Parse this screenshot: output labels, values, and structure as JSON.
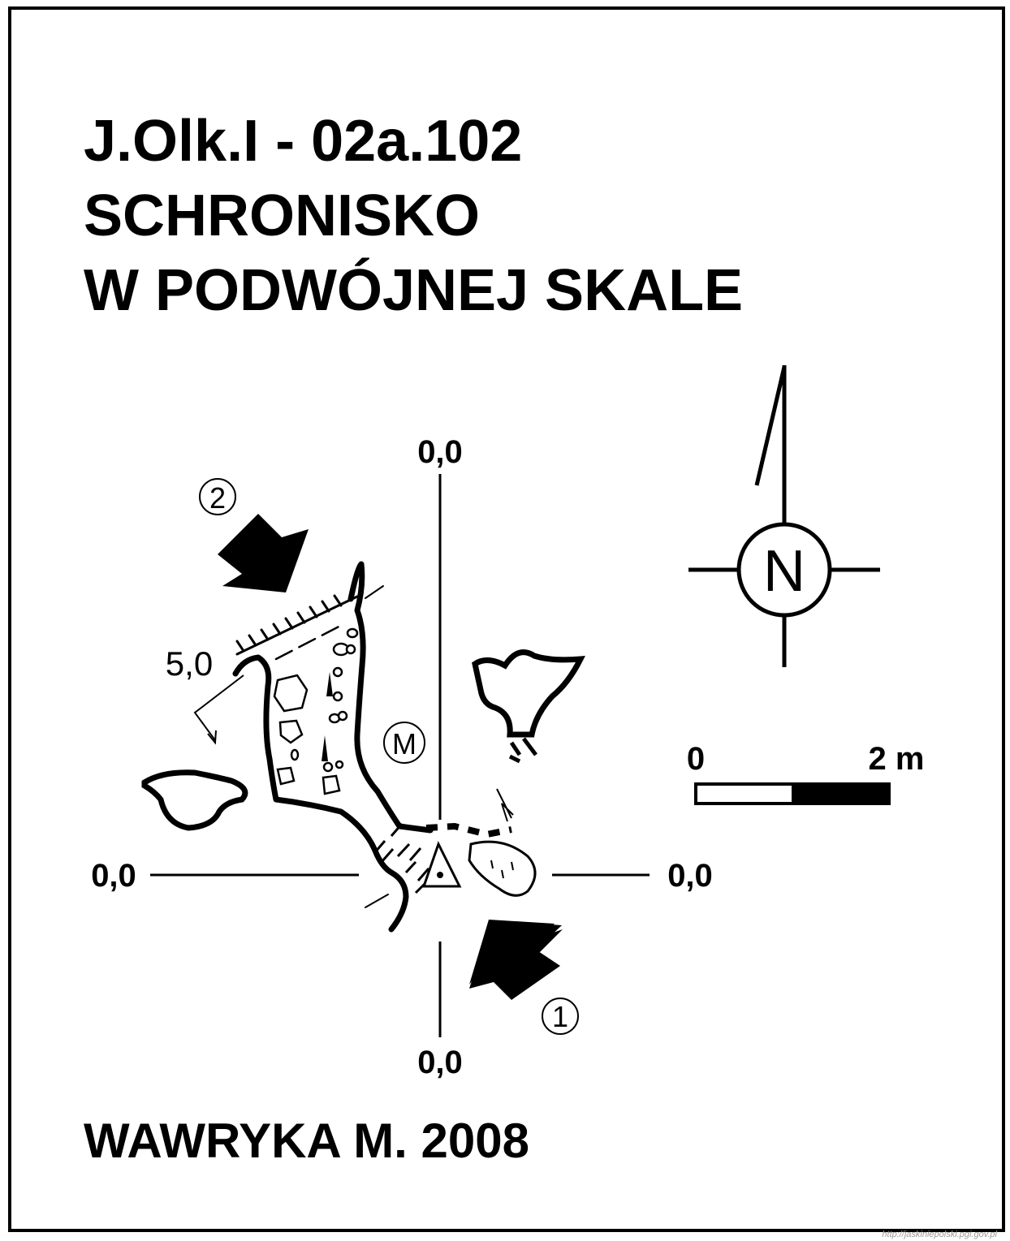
{
  "title": {
    "line1": "J.Olk.I - 02a.102",
    "line2": "SCHRONISKO",
    "line3": "W PODWÓJNEJ SKALE"
  },
  "grid_labels": {
    "top": "0,0",
    "bottom": "0,0",
    "left": "0,0",
    "right": "0,0"
  },
  "height_label": "5,0",
  "entrance_markers": {
    "one": "①",
    "two": "②"
  },
  "marker_m": "M",
  "north_label": "N",
  "scale": {
    "start": "0",
    "end": "2 m"
  },
  "author": "WAWRYKA M. 2008",
  "source": "http://jaskiniepolski.pgi.gov.pl",
  "colors": {
    "ink": "#000000",
    "paper": "#ffffff",
    "source_text": "#9a9a9a"
  }
}
